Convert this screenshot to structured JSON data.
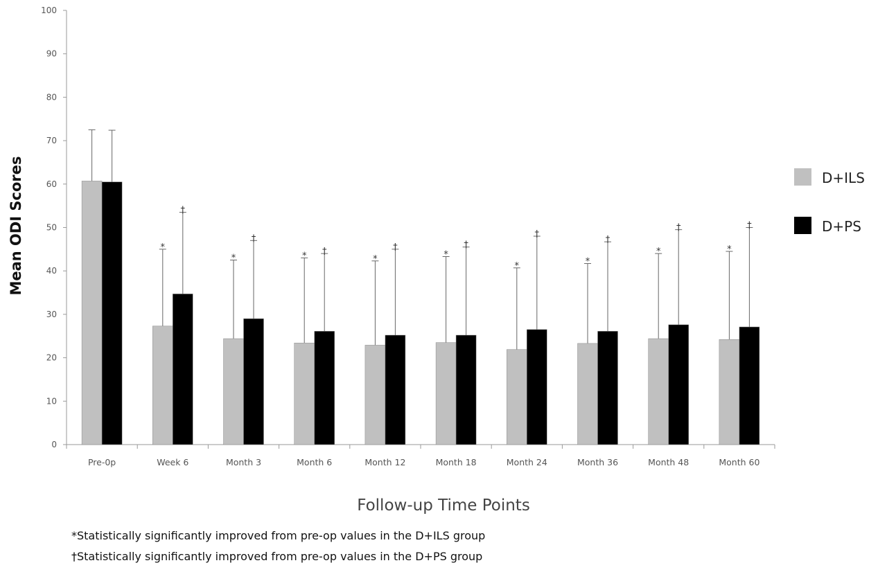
{
  "chart_data": {
    "type": "bar",
    "title": "",
    "xlabel": "Follow-up Time Points",
    "ylabel": "Mean ODI Scores",
    "ylim": [
      0,
      100
    ],
    "yticks": [
      0,
      10,
      20,
      30,
      40,
      50,
      60,
      70,
      80,
      90,
      100
    ],
    "grid": false,
    "legend_position": "right",
    "categories": [
      "Pre-0p",
      "Week 6",
      "Month 3",
      "Month 6",
      "Month 12",
      "Month 18",
      "Month 24",
      "Month 36",
      "Month 48",
      "Month 60"
    ],
    "series": [
      {
        "name": "D+ILS",
        "color": "#c0c0c0",
        "values": [
          60.7,
          27.3,
          24.4,
          23.4,
          22.9,
          23.5,
          21.9,
          23.3,
          24.4,
          24.2
        ],
        "error_upper": [
          72.5,
          45.0,
          42.5,
          43.0,
          42.3,
          43.3,
          40.7,
          41.7,
          44.0,
          44.5
        ],
        "significance_marker": "*",
        "significant": [
          false,
          true,
          true,
          true,
          true,
          true,
          true,
          true,
          true,
          true
        ]
      },
      {
        "name": "D+PS",
        "color": "#000000",
        "values": [
          60.5,
          34.7,
          29.0,
          26.1,
          25.2,
          25.2,
          26.5,
          26.1,
          27.6,
          27.1
        ],
        "error_upper": [
          72.4,
          53.5,
          47.0,
          44.0,
          45.0,
          45.5,
          48.0,
          46.7,
          49.5,
          50.0
        ],
        "significance_marker": "†",
        "significant": [
          false,
          true,
          true,
          true,
          true,
          true,
          true,
          true,
          true,
          true
        ]
      }
    ]
  },
  "footnotes": [
    "*Statistically significantly improved from pre-op values in the D+ILS group",
    "†Statistically significantly improved from pre-op values in the D+PS group"
  ]
}
